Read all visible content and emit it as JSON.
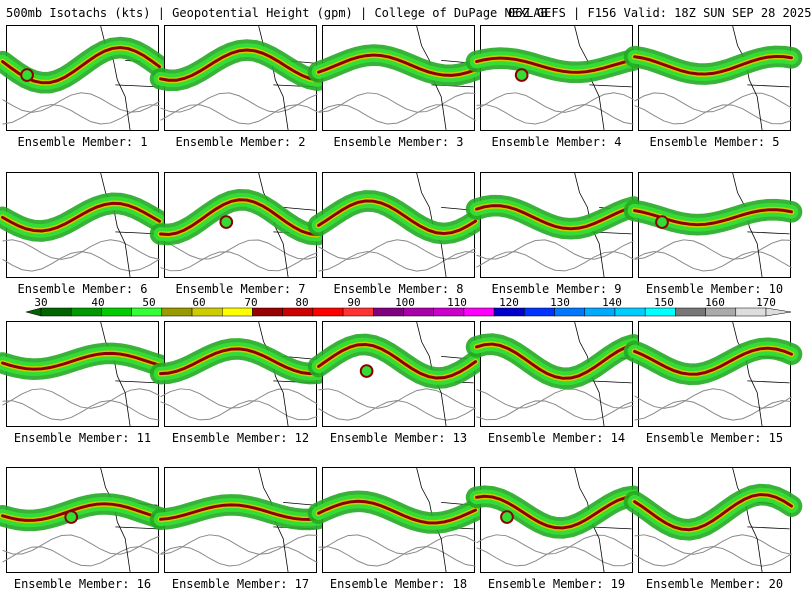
{
  "header": {
    "left": "500mb Isotachs (kts) | Geopotential Height (gpm) | College of DuPage NEXLAB",
    "right": "06Z GEFS | F156 Valid: 18Z SUN SEP 28 2025"
  },
  "members": [
    "Ensemble Member: 1",
    "Ensemble Member: 2",
    "Ensemble Member: 3",
    "Ensemble Member: 4",
    "Ensemble Member: 5",
    "Ensemble Member: 6",
    "Ensemble Member: 7",
    "Ensemble Member: 8",
    "Ensemble Member: 9",
    "Ensemble Member: 10",
    "Ensemble Member: 11",
    "Ensemble Member: 12",
    "Ensemble Member: 13",
    "Ensemble Member: 14",
    "Ensemble Member: 15",
    "Ensemble Member: 16",
    "Ensemble Member: 17",
    "Ensemble Member: 18",
    "Ensemble Member: 19",
    "Ensemble Member: 20"
  ],
  "legend": {
    "ticks": [
      "30",
      "40",
      "50",
      "60",
      "70",
      "80",
      "90",
      "100",
      "110",
      "120",
      "130",
      "140",
      "150",
      "160",
      "170"
    ],
    "colors": [
      "#006400",
      "#009900",
      "#00cc00",
      "#33ff33",
      "#999900",
      "#cccc00",
      "#ffff00",
      "#990000",
      "#cc0000",
      "#ff0000",
      "#ff3333",
      "#800080",
      "#aa00aa",
      "#cc00cc",
      "#ff00ff",
      "#0000cc",
      "#0033ff",
      "#0077ff",
      "#00aaff",
      "#00ccff",
      "#00ffff",
      "#777777",
      "#aaaaaa",
      "#dddddd"
    ]
  },
  "colors": {
    "background": "#ffffff",
    "jet_outer": "#22aa22",
    "jet_mid": "#33dd33",
    "jet_core": "#8b0000",
    "contour": "#888888",
    "border": "#000000"
  }
}
